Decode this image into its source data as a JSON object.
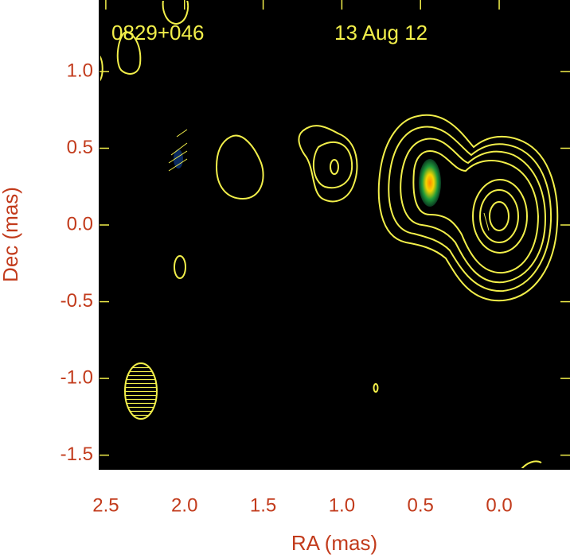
{
  "chart_data": {
    "type": "contour",
    "source_label": "0829+046",
    "date_label": "13 Aug 12",
    "x_label": "RA (mas)",
    "y_label": "Dec (mas)",
    "xlim": [
      2.54,
      -0.45
    ],
    "ylim": [
      -1.59,
      1.466
    ],
    "xticks": [
      2.5,
      {
        "value": 2,
        "label": "2.0"
      },
      1.5,
      {
        "value": 1,
        "label": "1.0"
      },
      0.5,
      {
        "value": 0,
        "label": "0.0"
      }
    ],
    "yticks": [
      {
        "value": 1,
        "label": "1.0"
      },
      0.5,
      {
        "value": 0,
        "label": "0.0"
      },
      -0.5,
      {
        "value": -1,
        "label": "-1.0"
      },
      -1.5
    ],
    "contour_color": "#f2ef4a"
  }
}
